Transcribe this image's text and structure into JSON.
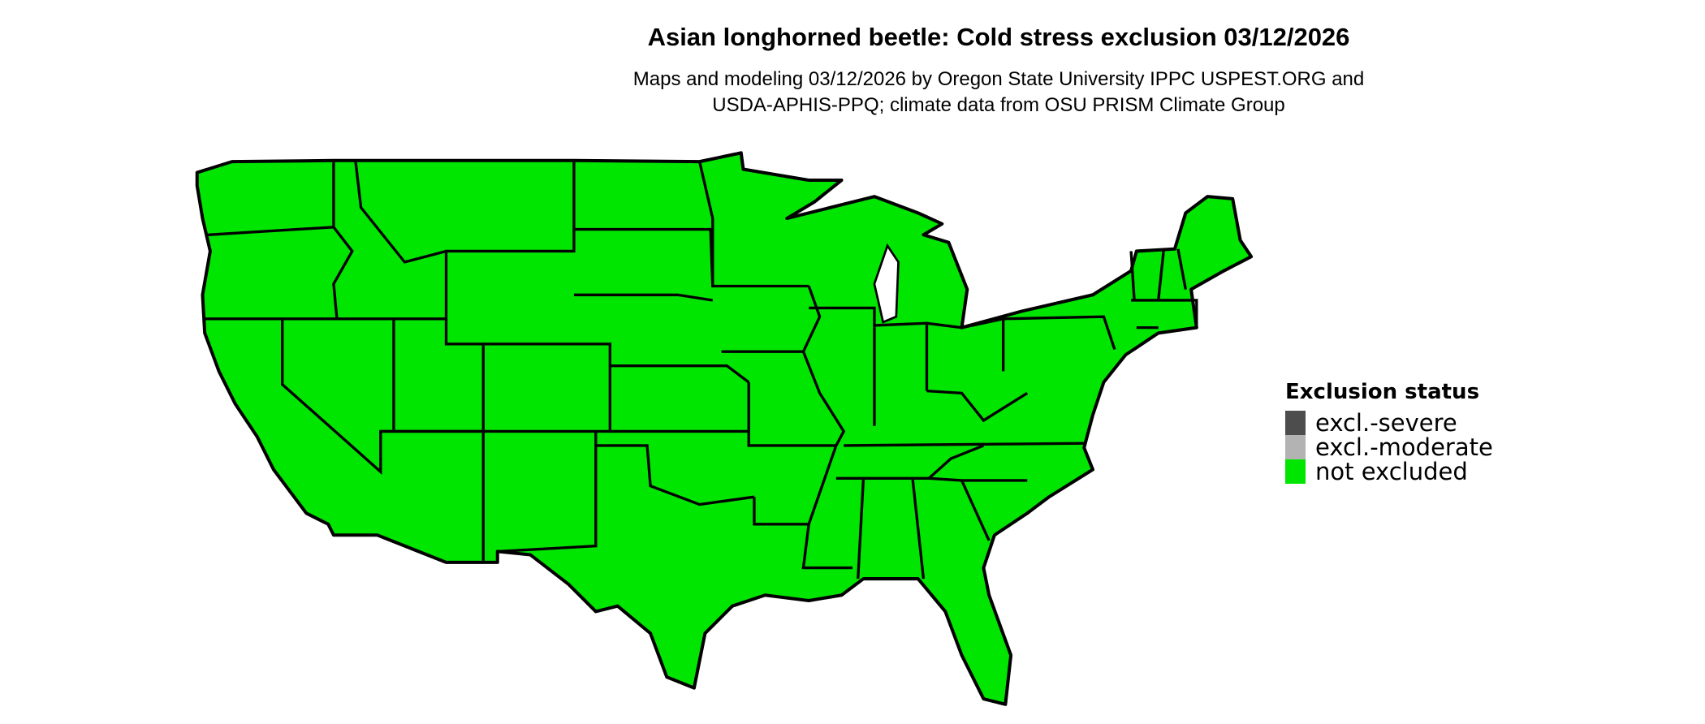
{
  "title": "Asian longhorned beetle: Cold stress exclusion 03/12/2026",
  "subtitle_lines": [
    "Maps and modeling 03/12/2026 by Oregon State University IPPC USPEST.ORG and",
    "USDA-APHIS-PPQ; climate data from OSU PRISM Climate Group"
  ],
  "map": {
    "region": "Contiguous United States",
    "status_shown": "not excluded",
    "fill_color": "#00e600",
    "border_color": "#000000"
  },
  "legend": {
    "title": "Exclusion status",
    "items": [
      {
        "label": "excl.-severe",
        "color": "#4d4d4d"
      },
      {
        "label": "excl.-moderate",
        "color": "#b3b3b3"
      },
      {
        "label": "not excluded",
        "color": "#00e600"
      }
    ]
  }
}
